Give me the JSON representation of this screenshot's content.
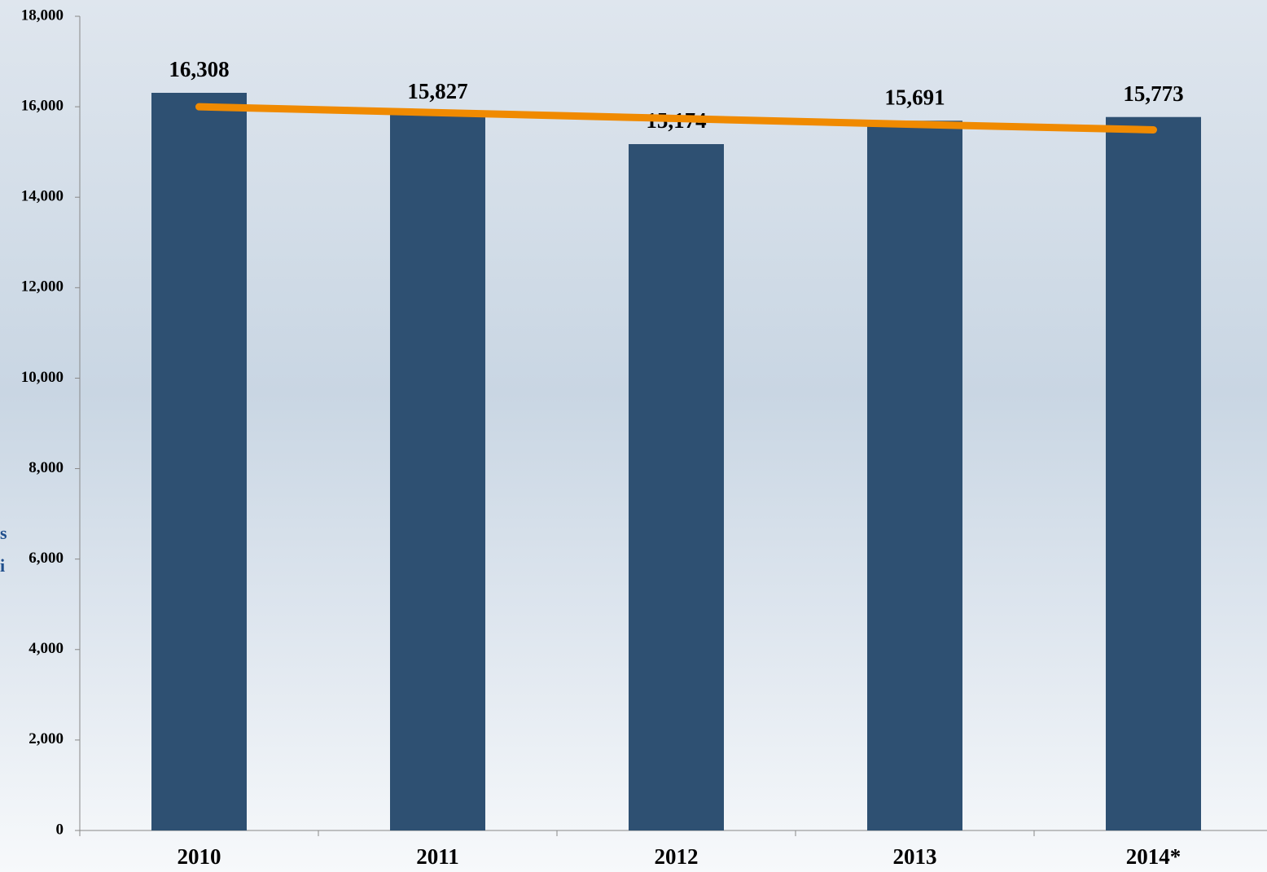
{
  "chart_data": {
    "type": "bar",
    "categories": [
      "2010",
      "2011",
      "2012",
      "2013",
      "2014*"
    ],
    "values": [
      16308,
      15827,
      15174,
      15691,
      15773
    ],
    "value_labels": [
      "16,308",
      "15,827",
      "15,174",
      "15,691",
      "15,773"
    ],
    "color": "#2e5072",
    "trend": {
      "type": "line",
      "color": "#f08a00",
      "values": [
        16000,
        15870,
        15740,
        15610,
        15490
      ]
    },
    "ylim": [
      0,
      18000
    ],
    "yticks": [
      0,
      {
        "value": 2000,
        "label": "2,000"
      },
      {
        "value": 4000,
        "label": "4,000"
      },
      {
        "value": 6000,
        "label": "6,000"
      },
      {
        "value": 8000,
        "label": "8,000"
      },
      {
        "value": 10000,
        "label": "10,000"
      },
      {
        "value": 12000,
        "label": "12,000"
      },
      {
        "value": 14000,
        "label": "14,000"
      },
      {
        "value": 16000,
        "label": "16,000"
      },
      {
        "value": 18000,
        "label": "18,000"
      }
    ],
    "y_label_fragments": [
      "s",
      "i"
    ],
    "grid": false
  }
}
